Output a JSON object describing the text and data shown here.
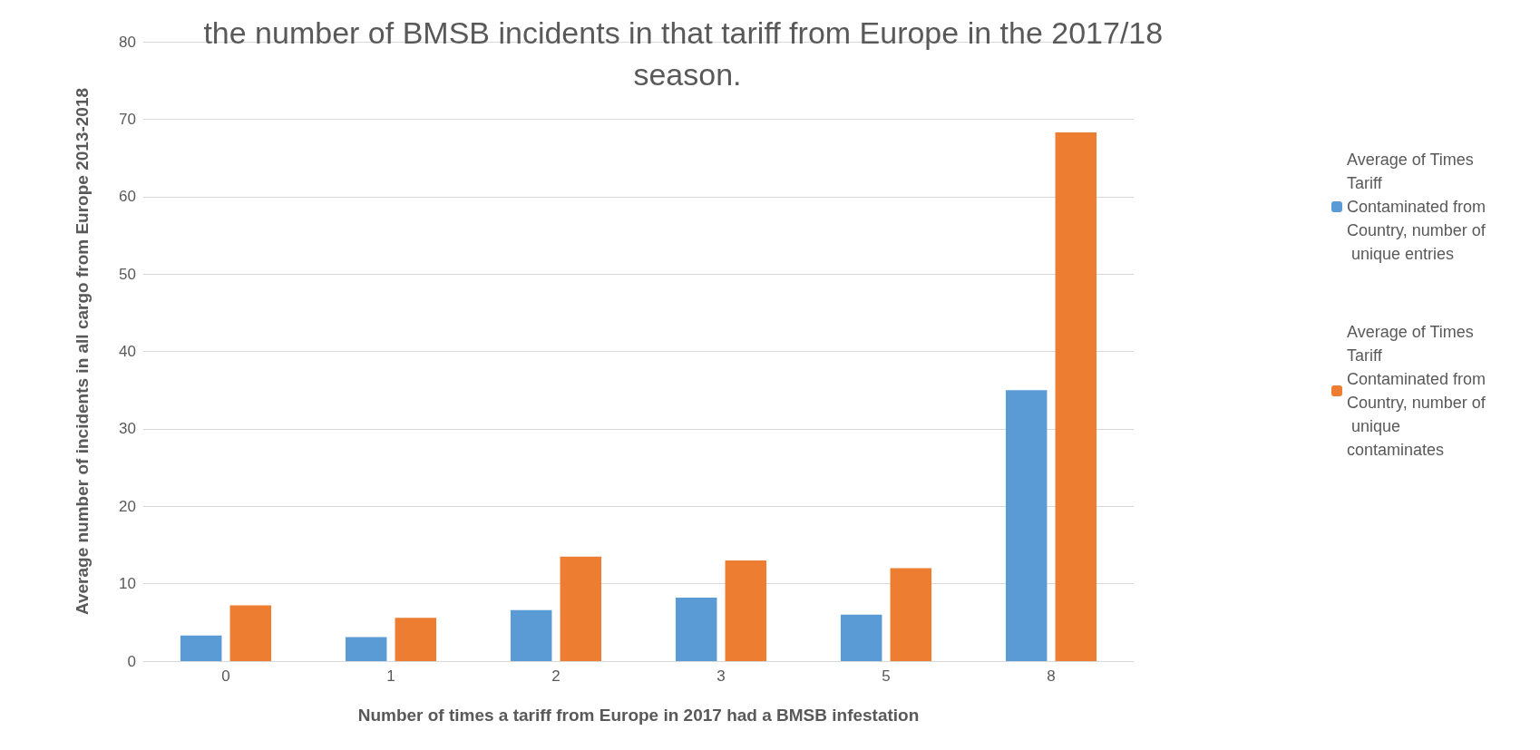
{
  "chart_data": {
    "type": "bar",
    "title": "the number of BMSB incidents in that tariff from Europe in the 2017/18 season.",
    "xlabel": "Number of times a tariff from Europe in 2017 had a BMSB infestation",
    "ylabel": "Average number of incidents in all cargo from Europe 2013-2018",
    "categories": [
      "0",
      "1",
      "2",
      "3",
      "5",
      "8"
    ],
    "series": [
      {
        "name": "Average of Times Tariff Contaminated from Country, number of unique entries",
        "color": "#5b9bd5",
        "values": [
          3.3,
          3.1,
          6.6,
          8.2,
          6.0,
          35.0
        ]
      },
      {
        "name": "Average of Times Tariff Contaminated from Country, number of unique contaminates",
        "color": "#ed7d31",
        "values": [
          7.2,
          5.6,
          13.5,
          13.0,
          12.0,
          68.3
        ]
      }
    ],
    "ylim": [
      0,
      80
    ],
    "yticks": [
      0,
      10,
      20,
      30,
      40,
      50,
      60,
      70,
      80
    ],
    "grid": "y",
    "legend": "right"
  }
}
